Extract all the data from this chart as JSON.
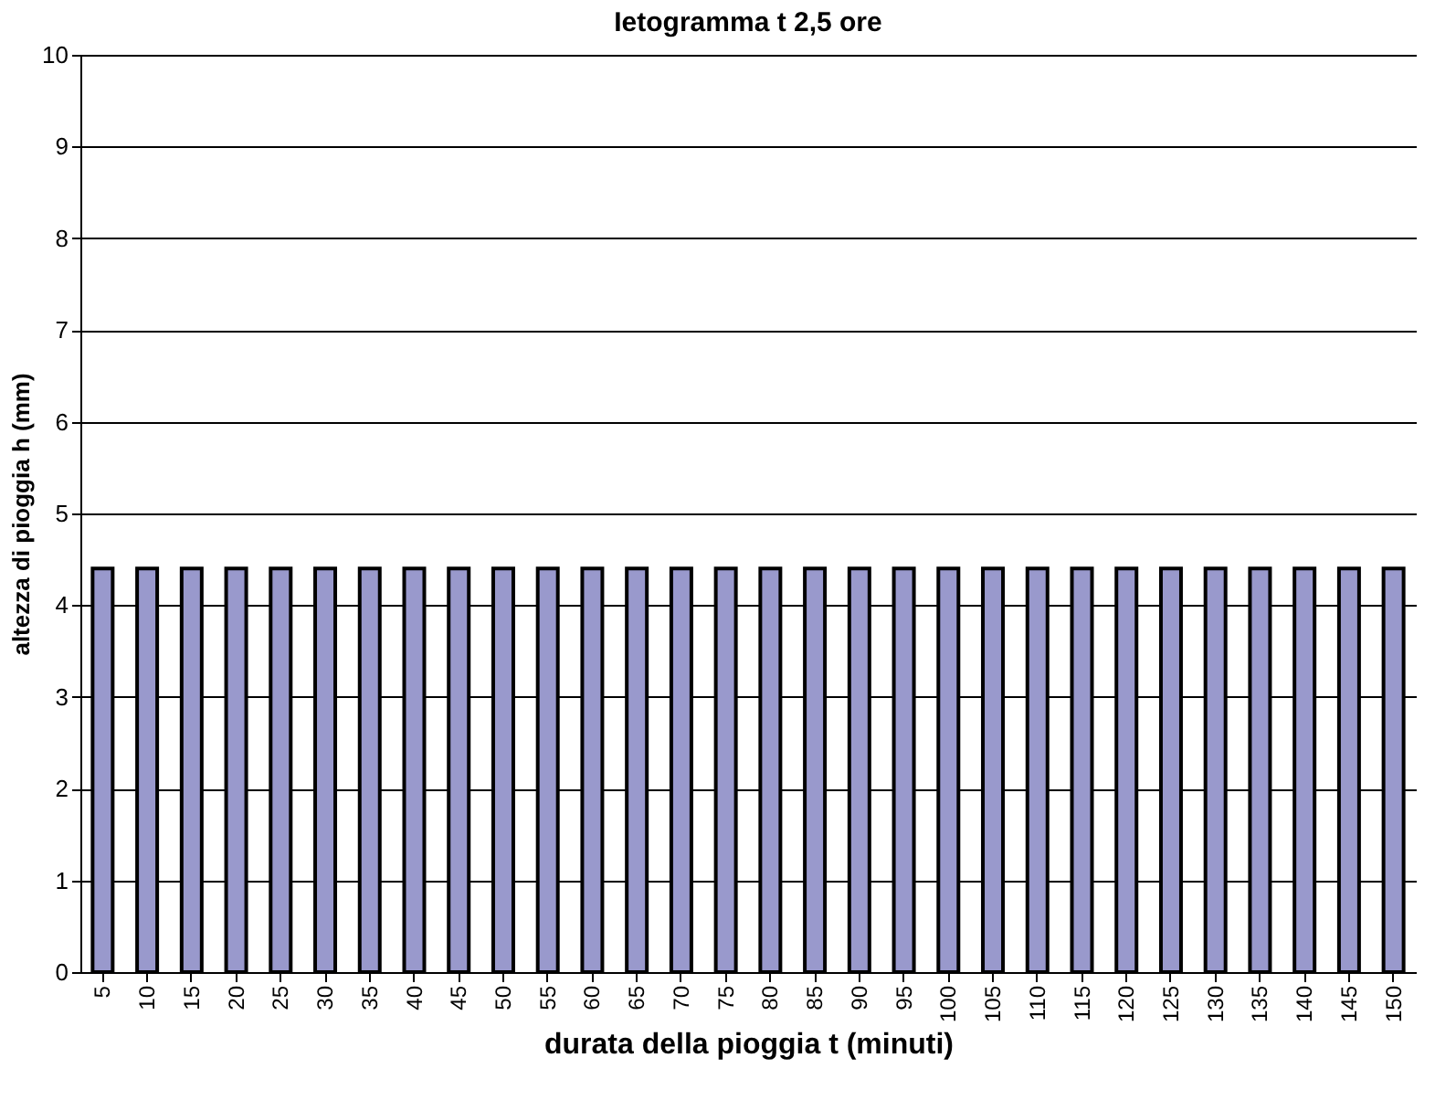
{
  "chart_data": {
    "type": "bar",
    "title": "Ietogramma t 2,5 ore",
    "xlabel": "durata della pioggia t (minuti)",
    "ylabel": "altezza di pioggia h (mm)",
    "categories": [
      "5",
      "10",
      "15",
      "20",
      "25",
      "30",
      "35",
      "40",
      "45",
      "50",
      "55",
      "60",
      "65",
      "70",
      "75",
      "80",
      "85",
      "90",
      "95",
      "100",
      "105",
      "110",
      "115",
      "120",
      "125",
      "130",
      "135",
      "140",
      "145",
      "150"
    ],
    "values": [
      4.4,
      4.4,
      4.4,
      4.4,
      4.4,
      4.4,
      4.4,
      4.4,
      4.4,
      4.4,
      4.4,
      4.4,
      4.4,
      4.4,
      4.4,
      4.4,
      4.4,
      4.4,
      4.4,
      4.4,
      4.4,
      4.4,
      4.4,
      4.4,
      4.4,
      4.4,
      4.4,
      4.4,
      4.4,
      4.4
    ],
    "color": "#9999cc",
    "ylim": [
      0,
      10
    ],
    "yticks": [
      0,
      1,
      2,
      3,
      4,
      5,
      6,
      7,
      8,
      9,
      10
    ],
    "grid": "y"
  }
}
